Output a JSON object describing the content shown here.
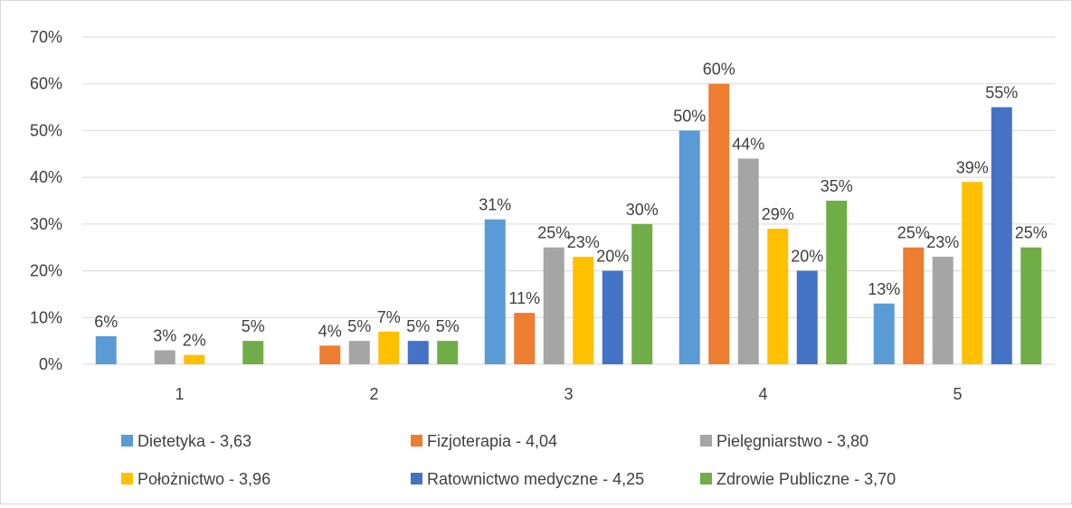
{
  "chart_data": {
    "type": "bar",
    "categories": [
      "1",
      "2",
      "3",
      "4",
      "5"
    ],
    "ylim": [
      0,
      70
    ],
    "yticks": [
      "0%",
      "10%",
      "20%",
      "30%",
      "40%",
      "50%",
      "60%",
      "70%"
    ],
    "grid": true,
    "legend_position": "bottom",
    "series": [
      {
        "name": "Dietetyka - 3,63",
        "color": "#5b9bd5",
        "values": [
          6,
          0,
          31,
          50,
          13
        ],
        "labels": [
          "6%",
          "",
          "31%",
          "50%",
          "13%"
        ]
      },
      {
        "name": "Fizjoterapia - 4,04",
        "color": "#ed7d31",
        "values": [
          0,
          4,
          11,
          60,
          25
        ],
        "labels": [
          "",
          "4%",
          "11%",
          "60%",
          "25%"
        ]
      },
      {
        "name": "Pielęgniarstwo - 3,80",
        "color": "#a5a5a5",
        "values": [
          3,
          5,
          25,
          44,
          23
        ],
        "labels": [
          "3%",
          "5%",
          "25%",
          "44%",
          "23%"
        ]
      },
      {
        "name": "Położnictwo - 3,96",
        "color": "#ffc000",
        "values": [
          2,
          7,
          23,
          29,
          39
        ],
        "labels": [
          "2%",
          "7%",
          "23%",
          "29%",
          "39%"
        ]
      },
      {
        "name": "Ratownictwo medyczne - 4,25",
        "color": "#4472c4",
        "values": [
          0,
          5,
          20,
          20,
          55
        ],
        "labels": [
          "",
          "5%",
          "20%",
          "20%",
          "55%"
        ]
      },
      {
        "name": "Zdrowie Publiczne - 3,70",
        "color": "#70ad47",
        "values": [
          5,
          5,
          30,
          35,
          25
        ],
        "labels": [
          "5%",
          "5%",
          "30%",
          "35%",
          "25%"
        ]
      }
    ]
  }
}
